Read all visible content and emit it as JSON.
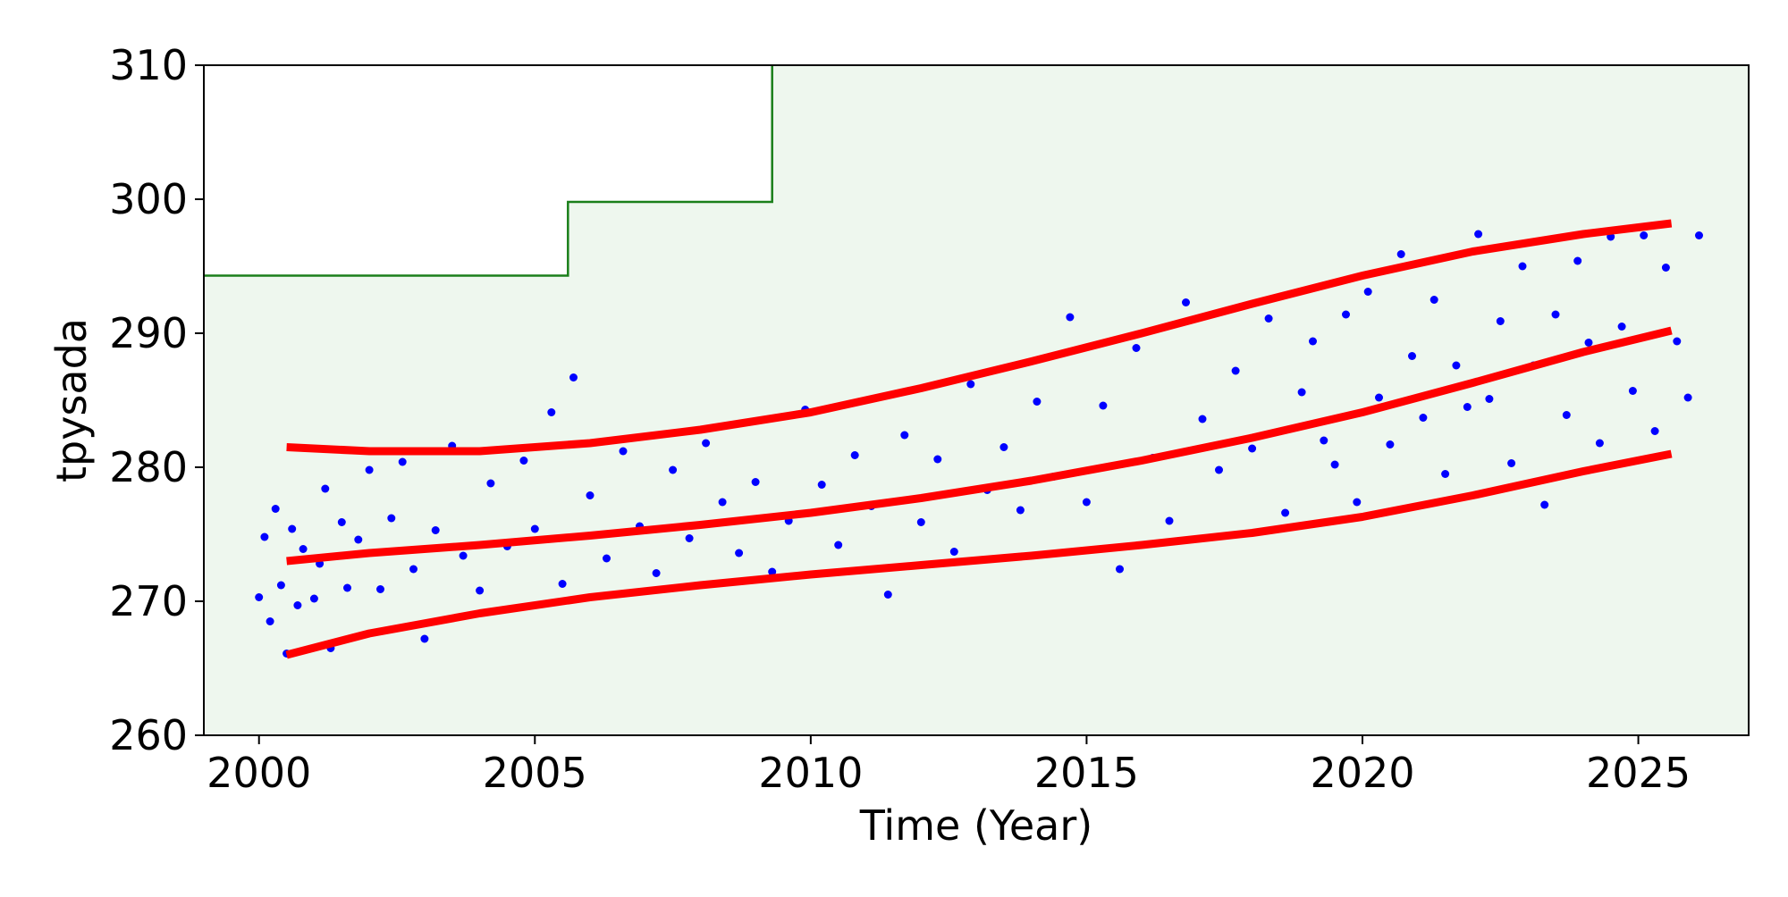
{
  "chart_data": {
    "type": "scatter",
    "title": "",
    "xlabel": "Time (Year)",
    "ylabel": "tpysada",
    "xlim": [
      1999.0,
      2027.0
    ],
    "ylim": [
      260,
      310
    ],
    "xticks": [
      2000,
      2005,
      2010,
      2015,
      2020,
      2025
    ],
    "yticks": [
      260,
      270,
      280,
      290,
      300,
      310
    ],
    "grid": false,
    "legend": "none",
    "colors": {
      "points": "#0000ff",
      "trend": "#ff0000",
      "threshold": "#1a7f1a",
      "background_fill": "#eef7ee"
    },
    "threshold_step": {
      "x": [
        1999.0,
        2005.6,
        2005.6,
        2009.3,
        2009.3
      ],
      "y": [
        294.3,
        294.3,
        299.8,
        299.8,
        310
      ]
    },
    "series": [
      {
        "type": "line",
        "x": [
          2000.5,
          2002.0,
          2004.0,
          2006.0,
          2008.0,
          2010.0,
          2012.0,
          2014.0,
          2016.0,
          2018.0,
          2020.0,
          2022.0,
          2024.0,
          2025.6
        ],
        "y": [
          273.0,
          273.6,
          274.2,
          274.9,
          275.7,
          276.6,
          277.7,
          279.0,
          280.5,
          282.2,
          284.1,
          286.3,
          288.6,
          290.2
        ]
      },
      {
        "type": "line",
        "x": [
          2000.5,
          2002.0,
          2004.0,
          2006.0,
          2008.0,
          2010.0,
          2012.0,
          2014.0,
          2016.0,
          2018.0,
          2020.0,
          2022.0,
          2024.0,
          2025.6
        ],
        "y": [
          281.5,
          281.2,
          281.2,
          281.8,
          282.8,
          284.1,
          285.9,
          287.9,
          290.0,
          292.2,
          294.3,
          296.1,
          297.4,
          298.2
        ]
      },
      {
        "type": "line",
        "x": [
          2000.5,
          2002.0,
          2004.0,
          2006.0,
          2008.0,
          2010.0,
          2012.0,
          2014.0,
          2016.0,
          2018.0,
          2020.0,
          2022.0,
          2024.0,
          2025.6
        ],
        "y": [
          266.0,
          267.6,
          269.1,
          270.3,
          271.2,
          272.0,
          272.7,
          273.4,
          274.2,
          275.1,
          276.3,
          277.9,
          279.7,
          281.0
        ]
      }
    ],
    "scatter_points": {
      "x": [
        2000.0,
        2000.1,
        2000.2,
        2000.3,
        2000.4,
        2000.5,
        2000.6,
        2000.7,
        2000.8,
        2001.0,
        2001.1,
        2001.2,
        2001.3,
        2001.5,
        2001.6,
        2001.8,
        2002.0,
        2002.2,
        2002.4,
        2002.6,
        2002.8,
        2003.0,
        2003.2,
        2003.5,
        2003.7,
        2004.0,
        2004.2,
        2004.5,
        2004.8,
        2005.0,
        2005.3,
        2005.5,
        2005.7,
        2006.0,
        2006.3,
        2006.6,
        2006.9,
        2007.2,
        2007.5,
        2007.8,
        2008.1,
        2008.4,
        2008.7,
        2009.0,
        2009.3,
        2009.6,
        2009.9,
        2010.2,
        2010.5,
        2010.8,
        2011.1,
        2011.4,
        2011.7,
        2012.0,
        2012.3,
        2012.6,
        2012.9,
        2013.2,
        2013.5,
        2013.8,
        2014.1,
        2014.4,
        2014.7,
        2015.0,
        2015.3,
        2015.6,
        2015.9,
        2016.2,
        2016.5,
        2016.8,
        2017.1,
        2017.4,
        2017.7,
        2018.0,
        2018.3,
        2018.6,
        2018.9,
        2019.1,
        2019.3,
        2019.5,
        2019.7,
        2019.9,
        2020.1,
        2020.3,
        2020.5,
        2020.7,
        2020.9,
        2021.1,
        2021.3,
        2021.5,
        2021.7,
        2021.9,
        2022.1,
        2022.3,
        2022.5,
        2022.7,
        2022.9,
        2023.1,
        2023.3,
        2023.5,
        2023.7,
        2023.9,
        2024.1,
        2024.3,
        2024.5,
        2024.7,
        2024.9,
        2025.1,
        2025.3,
        2025.5,
        2025.7,
        2025.9,
        2026.1
      ],
      "y": [
        270.3,
        274.8,
        268.5,
        276.9,
        271.2,
        266.1,
        275.4,
        269.7,
        273.9,
        270.2,
        272.8,
        278.4,
        266.5,
        275.9,
        271.0,
        274.6,
        279.8,
        270.9,
        276.2,
        280.4,
        272.4,
        267.2,
        275.3,
        281.6,
        273.4,
        270.8,
        278.8,
        274.1,
        280.5,
        275.4,
        284.1,
        271.3,
        286.7,
        277.9,
        273.2,
        281.2,
        275.6,
        272.1,
        279.8,
        274.7,
        281.8,
        277.4,
        273.6,
        278.9,
        272.2,
        276.0,
        284.3,
        278.7,
        274.2,
        280.9,
        277.1,
        270.5,
        282.4,
        275.9,
        280.6,
        273.7,
        286.2,
        278.3,
        281.5,
        276.8,
        284.9,
        279.3,
        291.2,
        277.4,
        284.6,
        272.4,
        288.9,
        280.7,
        276.0,
        292.3,
        283.6,
        279.8,
        287.2,
        281.4,
        291.1,
        276.6,
        285.6,
        289.4,
        282.0,
        280.2,
        291.4,
        277.4,
        293.1,
        285.2,
        281.7,
        295.9,
        288.3,
        283.7,
        292.5,
        279.5,
        287.6,
        284.5,
        297.4,
        285.1,
        290.9,
        280.3,
        295.0,
        287.6,
        277.2,
        291.4,
        283.9,
        295.4,
        289.3,
        281.8,
        297.2,
        290.5,
        285.7,
        297.3,
        282.7,
        294.9,
        289.4,
        285.2,
        297.3
      ]
    }
  }
}
